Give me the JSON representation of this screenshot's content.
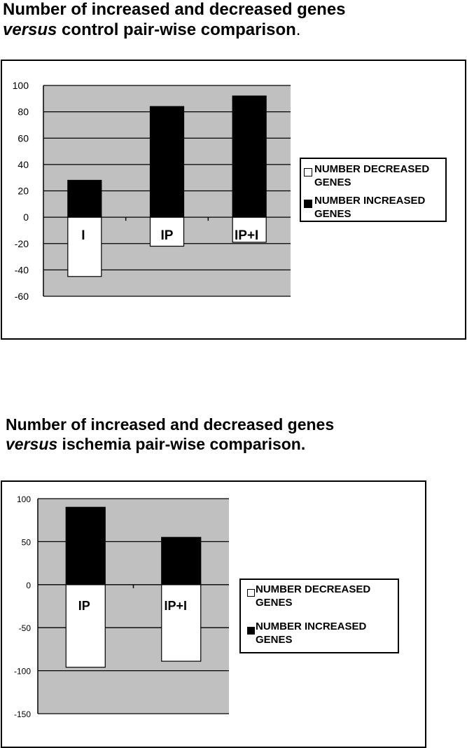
{
  "title_1": {
    "line1": "Number of increased and decreased genes",
    "line2_em": "versus",
    "line2_rest": " control pair-wise comparison",
    "line2_end": "."
  },
  "title_2": {
    "line1": "Number of increased and decreased genes",
    "line2_em": "versus",
    "line2_rest": " ischemia pair-wise comparison."
  },
  "chart_data": [
    {
      "type": "bar",
      "stacked": true,
      "categories": [
        "I",
        "IP",
        "IP+I"
      ],
      "series": [
        {
          "name": "NUMBER DECREASED GENES",
          "values": [
            -45,
            -22,
            -19
          ],
          "color": "#ffffff"
        },
        {
          "name": "NUMBER INCREASED GENES",
          "values": [
            28,
            84,
            92
          ],
          "color": "#000000"
        }
      ],
      "y_ticks": [
        100,
        80,
        60,
        40,
        20,
        0,
        -20,
        -40,
        -60
      ],
      "ylim": [
        -60,
        100
      ],
      "grid": true,
      "plot_background": "#c0c0c0",
      "legend_position": "right"
    },
    {
      "type": "bar",
      "stacked": true,
      "categories": [
        "IP",
        "IP+I"
      ],
      "series": [
        {
          "name": "NUMBER DECREASED GENES",
          "values": [
            -96,
            -89
          ],
          "color": "#ffffff"
        },
        {
          "name": "NUMBER INCREASED GENES",
          "values": [
            90,
            55
          ],
          "color": "#000000"
        }
      ],
      "y_ticks": [
        100,
        50,
        0,
        -50,
        -100,
        -150
      ],
      "ylim": [
        -150,
        100
      ],
      "grid": true,
      "plot_background": "#c0c0c0",
      "legend_position": "right"
    }
  ]
}
